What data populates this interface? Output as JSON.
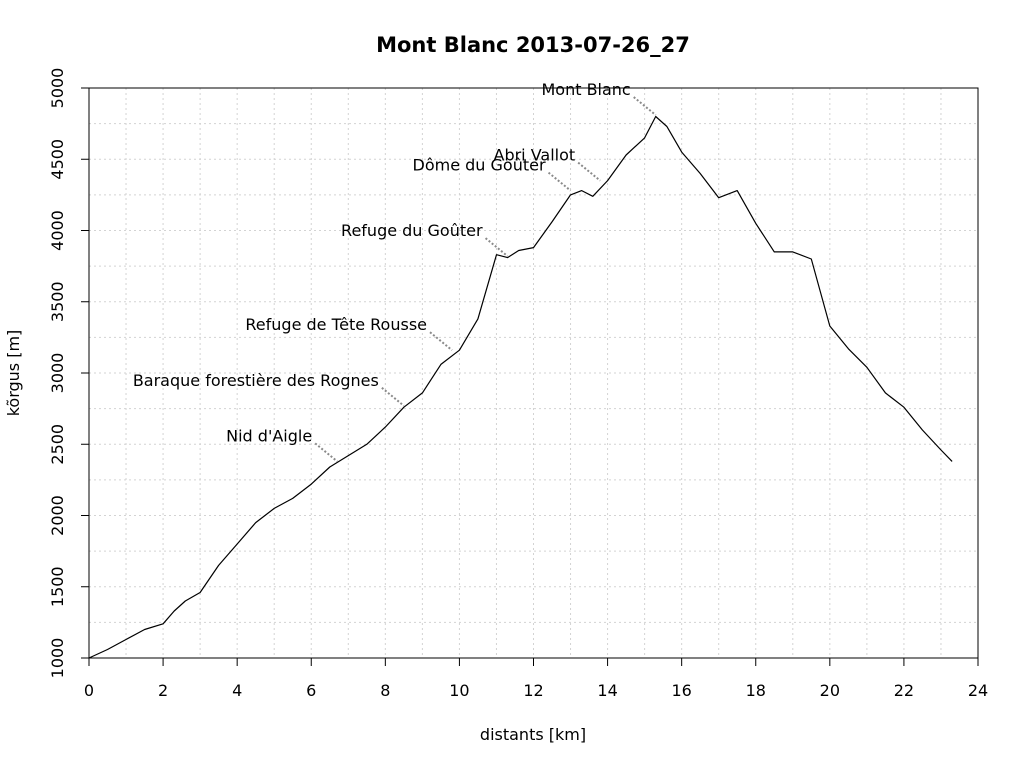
{
  "chart_data": {
    "type": "line",
    "title": "Mont Blanc 2013-07-26_27",
    "xlabel": "distants [km]",
    "ylabel": "kõrgus [m]",
    "xlim": [
      0,
      24
    ],
    "ylim": [
      1000,
      5000
    ],
    "x_ticks": [
      0,
      2,
      4,
      6,
      8,
      10,
      12,
      14,
      16,
      18,
      20,
      22,
      24
    ],
    "y_ticks": [
      1000,
      1500,
      2000,
      2500,
      3000,
      3500,
      4000,
      4500,
      5000
    ],
    "grid": true,
    "series": [
      {
        "x": [
          0,
          0.5,
          1.0,
          1.5,
          2.0,
          2.3,
          2.6,
          3.0,
          3.5,
          4.0,
          4.5,
          5.0,
          5.5,
          6.0,
          6.5,
          7.0,
          7.5,
          8.0,
          8.5,
          9.0,
          9.5,
          10.0,
          10.5,
          11.0,
          11.3,
          11.6,
          12.0,
          12.5,
          13.0,
          13.3,
          13.6,
          14.0,
          14.5,
          15.0,
          15.3,
          15.6,
          16.0,
          16.5,
          17.0,
          17.5,
          18.0,
          18.5,
          19.0,
          19.5,
          20.0,
          20.5,
          21.0,
          21.5,
          22.0,
          22.5,
          23.0,
          23.3
        ],
        "y": [
          1000,
          1060,
          1130,
          1200,
          1240,
          1330,
          1400,
          1460,
          1650,
          1800,
          1950,
          2050,
          2120,
          2220,
          2340,
          2420,
          2500,
          2620,
          2760,
          2860,
          3060,
          3160,
          3380,
          3830,
          3810,
          3860,
          3880,
          4060,
          4250,
          4280,
          4240,
          4350,
          4530,
          4650,
          4800,
          4730,
          4550,
          4400,
          4230,
          4280,
          4050,
          3850,
          3850,
          3800,
          3330,
          3170,
          3040,
          2860,
          2760,
          2600,
          2460,
          2380
        ]
      }
    ],
    "annotations": [
      {
        "label": "Mont Blanc",
        "x": 15.3,
        "y": 4810
      },
      {
        "label": "Abri Vallot",
        "x": 13.8,
        "y": 4350
      },
      {
        "label": "Dôme du Goûter",
        "x": 13.0,
        "y": 4280
      },
      {
        "label": "Refuge du Goûter",
        "x": 11.3,
        "y": 3820
      },
      {
        "label": "Refuge de Tête Rousse",
        "x": 9.8,
        "y": 3160
      },
      {
        "label": "Baraque forestière des Rognes",
        "x": 8.5,
        "y": 2770
      },
      {
        "label": "Nid d'Aigle",
        "x": 6.7,
        "y": 2380
      }
    ]
  }
}
